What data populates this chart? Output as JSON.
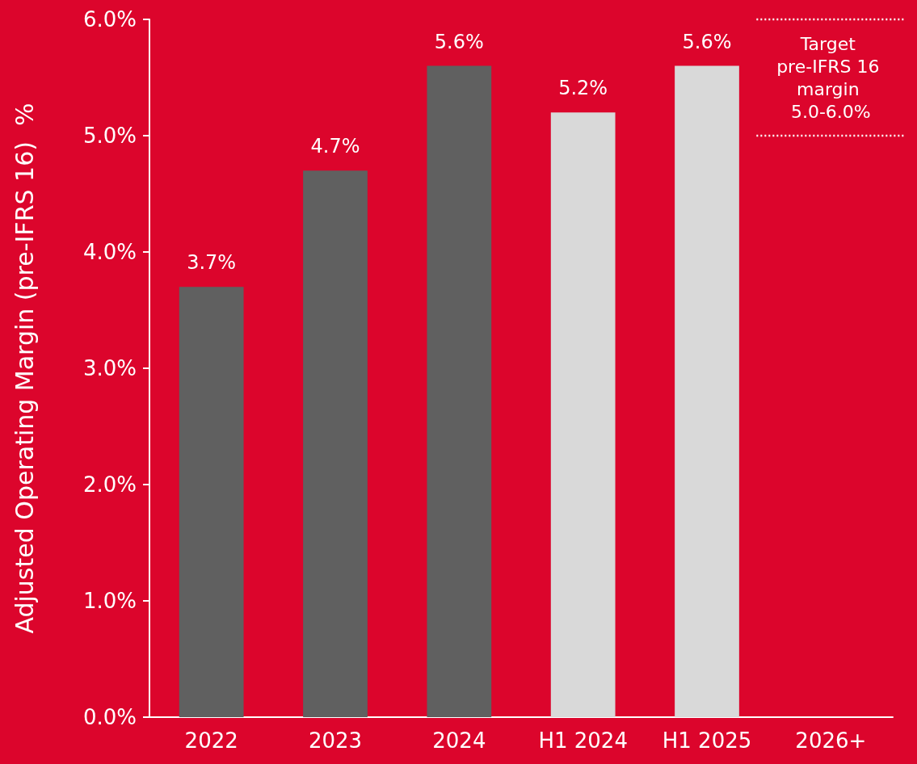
{
  "chart_data": {
    "type": "bar",
    "ylabel": "Adjusted Operating Margin (pre-IFRS 16)  %",
    "categories": [
      "2022",
      "2023",
      "2024",
      "H1 2024",
      "H1 2025",
      "2026+"
    ],
    "values": [
      3.7,
      4.7,
      5.6,
      5.2,
      5.6,
      null
    ],
    "colors": [
      "#606060",
      "#606060",
      "#606060",
      "#d9d9d9",
      "#d9d9d9",
      "#d9d9d9"
    ],
    "value_labels": [
      "3.7%",
      "4.7%",
      "5.6%",
      "5.2%",
      "5.6%",
      null
    ],
    "ylim": [
      0,
      6
    ],
    "yticks": [
      {
        "value": 0,
        "label": "0.0%"
      },
      {
        "value": 1,
        "label": "1.0%"
      },
      {
        "value": 2,
        "label": "2.0%"
      },
      {
        "value": 3,
        "label": "3.0%"
      },
      {
        "value": 4,
        "label": "4.0%"
      },
      {
        "value": 5,
        "label": "5.0%"
      },
      {
        "value": 6,
        "label": "6.0%"
      }
    ],
    "ref_lines": [
      {
        "axis": "y",
        "value": 6,
        "color": "#ffffff",
        "line_style": "dotted"
      },
      {
        "axis": "y",
        "value": 5,
        "color": "#ffffff",
        "line_style": "dotted"
      }
    ],
    "annotations": [
      "Target pre-IFRS 16 margin 5.0-6.0%"
    ],
    "grid": false
  }
}
